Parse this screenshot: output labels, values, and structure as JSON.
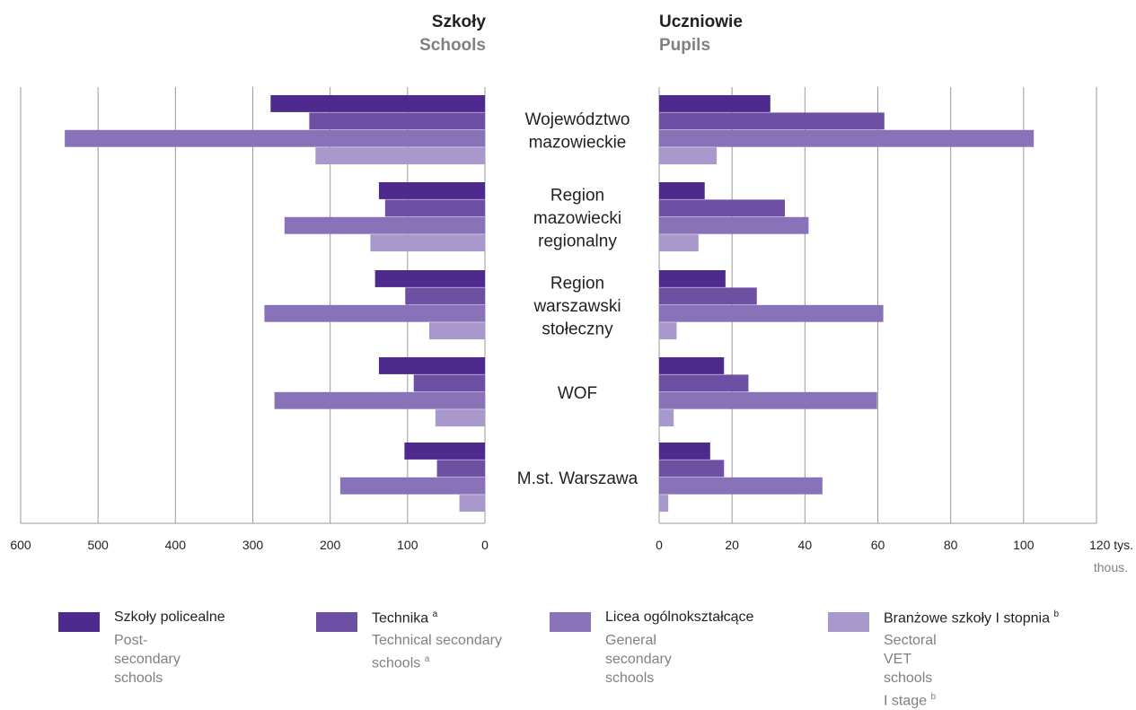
{
  "colors": {
    "series": [
      "#4e2a8e",
      "#6d4fa3",
      "#8a72b8",
      "#a898cb"
    ],
    "grid": "#9a9a9a",
    "text": "#231f20",
    "text_secondary": "#808080"
  },
  "chart_data": [
    {
      "type": "bar",
      "orientation": "horizontal",
      "direction": "right-to-left",
      "title": "Szkoły",
      "subtitle": "Schools",
      "categories": [
        "Województwo mazowieckie",
        "Region mazowiecki regionalny",
        "Region warszawski stołeczny",
        "WOF",
        "M.st. Warszawa"
      ],
      "series": [
        {
          "name": "Szkoły policealne",
          "values": [
            277,
            137,
            142,
            137,
            104
          ]
        },
        {
          "name": "Technika",
          "values": [
            227,
            129,
            103,
            92,
            62
          ]
        },
        {
          "name": "Licea ogólnokształcące",
          "values": [
            543,
            259,
            285,
            272,
            187
          ]
        },
        {
          "name": "Branżowe szkoły I stopnia",
          "values": [
            219,
            148,
            72,
            64,
            33
          ]
        }
      ],
      "xlim": [
        0,
        600
      ],
      "xticks": [
        "600",
        "500",
        "400",
        "300",
        "200",
        "100",
        "0"
      ],
      "grid": true
    },
    {
      "type": "bar",
      "orientation": "horizontal",
      "title": "Uczniowie",
      "subtitle": "Pupils",
      "categories": [
        "Województwo mazowieckie",
        "Region mazowiecki regionalny",
        "Region warszawski stołeczny",
        "WOF",
        "M.st. Warszawa"
      ],
      "series": [
        {
          "name": "Szkoły policealne",
          "values": [
            30.5,
            12.5,
            18.2,
            17.8,
            14.0
          ]
        },
        {
          "name": "Technika",
          "values": [
            61.8,
            34.5,
            26.8,
            24.5,
            17.8
          ]
        },
        {
          "name": "Licea ogólnokształcące",
          "values": [
            102.8,
            41.0,
            61.5,
            59.8,
            44.8
          ]
        },
        {
          "name": "Branżowe szkoły I stopnia",
          "values": [
            15.8,
            10.8,
            4.8,
            4.0,
            2.5
          ]
        }
      ],
      "xlim": [
        0,
        120
      ],
      "xticks": [
        "0",
        "20",
        "40",
        "60",
        "80",
        "100",
        "120 tys."
      ],
      "unit_en": "thous.",
      "grid": true
    }
  ],
  "category_lines": [
    [
      "Województwo",
      "mazowieckie"
    ],
    [
      "Region",
      "mazowiecki",
      "regionalny"
    ],
    [
      "Region",
      "warszawski",
      "stołeczny"
    ],
    [
      "WOF"
    ],
    [
      "M.st. Warszawa"
    ]
  ],
  "legend": [
    {
      "pl": "Szkoły policealne",
      "en": "Post-secondary schools"
    },
    {
      "pl": "Technika",
      "pl_sup": "a",
      "en": "Technical secondary schools",
      "en_sup": "a"
    },
    {
      "pl": "Licea ogólnokształcące",
      "en": "General secondary schools"
    },
    {
      "pl": "Branżowe szkoły I stopnia",
      "pl_sup": "b",
      "en": "Sectoral VET schools I stage",
      "en_sup": "b"
    }
  ]
}
